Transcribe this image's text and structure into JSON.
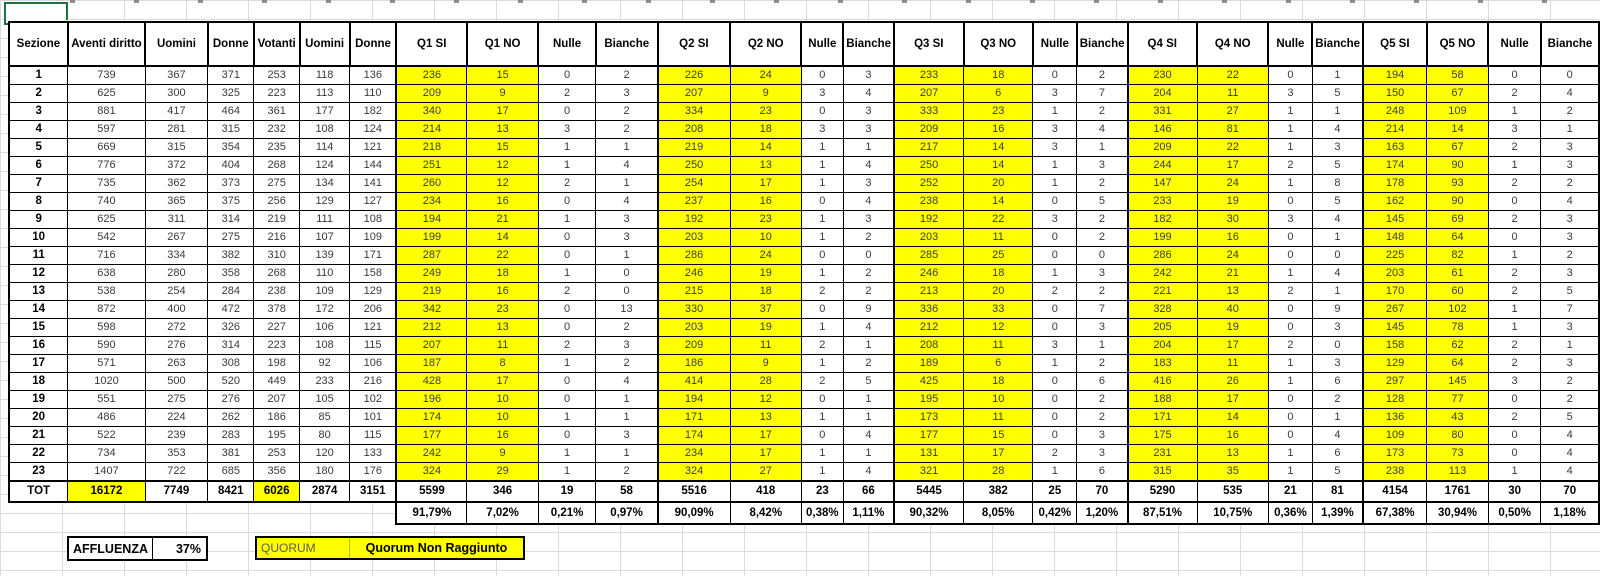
{
  "table": {
    "headers": [
      "Sezione",
      "Aventi diritto",
      "Uomini",
      "Donne",
      "Votanti",
      "Uomini",
      "Donne",
      "Q1 SI",
      "Q1 NO",
      "Nulle",
      "Bianche",
      "Q2 SI",
      "Q2 NO",
      "Nulle",
      "Bianche",
      "Q3 SI",
      "Q3 NO",
      "Nulle",
      "Bianche",
      "Q4 SI",
      "Q4 NO",
      "Nulle",
      "Bianche",
      "Q5 SI",
      "Q5 NO",
      "Nulle",
      "Bianche"
    ],
    "rows": [
      [
        1,
        739,
        367,
        371,
        253,
        118,
        136,
        236,
        15,
        0,
        2,
        226,
        24,
        0,
        3,
        233,
        18,
        0,
        2,
        230,
        22,
        0,
        1,
        194,
        58,
        0,
        0
      ],
      [
        2,
        625,
        300,
        325,
        223,
        113,
        110,
        209,
        9,
        2,
        3,
        207,
        9,
        3,
        4,
        207,
        6,
        3,
        7,
        204,
        11,
        3,
        5,
        150,
        67,
        2,
        4
      ],
      [
        3,
        881,
        417,
        464,
        361,
        177,
        182,
        340,
        17,
        0,
        2,
        334,
        23,
        0,
        3,
        333,
        23,
        1,
        2,
        331,
        27,
        1,
        1,
        248,
        109,
        1,
        2
      ],
      [
        4,
        597,
        281,
        315,
        232,
        108,
        124,
        214,
        13,
        3,
        2,
        208,
        18,
        3,
        3,
        209,
        16,
        3,
        4,
        146,
        81,
        1,
        4,
        214,
        14,
        3,
        1
      ],
      [
        5,
        669,
        315,
        354,
        235,
        114,
        121,
        218,
        15,
        1,
        1,
        219,
        14,
        1,
        1,
        217,
        14,
        3,
        1,
        209,
        22,
        1,
        3,
        163,
        67,
        2,
        3
      ],
      [
        6,
        776,
        372,
        404,
        268,
        124,
        144,
        251,
        12,
        1,
        4,
        250,
        13,
        1,
        4,
        250,
        14,
        1,
        3,
        244,
        17,
        2,
        5,
        174,
        90,
        1,
        3
      ],
      [
        7,
        735,
        362,
        373,
        275,
        134,
        141,
        260,
        12,
        2,
        1,
        254,
        17,
        1,
        3,
        252,
        20,
        1,
        2,
        147,
        24,
        1,
        8,
        178,
        93,
        2,
        2
      ],
      [
        8,
        740,
        365,
        375,
        256,
        129,
        127,
        234,
        16,
        0,
        4,
        237,
        16,
        0,
        4,
        238,
        14,
        0,
        5,
        233,
        19,
        0,
        5,
        162,
        90,
        0,
        4
      ],
      [
        9,
        625,
        311,
        314,
        219,
        111,
        108,
        194,
        21,
        1,
        3,
        192,
        23,
        1,
        3,
        192,
        22,
        3,
        2,
        182,
        30,
        3,
        4,
        145,
        69,
        2,
        3
      ],
      [
        10,
        542,
        267,
        275,
        216,
        107,
        109,
        199,
        14,
        0,
        3,
        203,
        10,
        1,
        2,
        203,
        11,
        0,
        2,
        199,
        16,
        0,
        1,
        148,
        64,
        0,
        3
      ],
      [
        11,
        716,
        334,
        382,
        310,
        139,
        171,
        287,
        22,
        0,
        1,
        286,
        24,
        0,
        0,
        285,
        25,
        0,
        0,
        286,
        24,
        0,
        0,
        225,
        82,
        1,
        2
      ],
      [
        12,
        638,
        280,
        358,
        268,
        110,
        158,
        249,
        18,
        1,
        0,
        246,
        19,
        1,
        2,
        246,
        18,
        1,
        3,
        242,
        21,
        1,
        4,
        203,
        61,
        2,
        3
      ],
      [
        13,
        538,
        254,
        284,
        238,
        109,
        129,
        219,
        16,
        2,
        0,
        215,
        18,
        2,
        2,
        213,
        20,
        2,
        2,
        221,
        13,
        2,
        1,
        170,
        60,
        2,
        5
      ],
      [
        14,
        872,
        400,
        472,
        378,
        172,
        206,
        342,
        23,
        0,
        13,
        330,
        37,
        0,
        9,
        336,
        33,
        0,
        7,
        328,
        40,
        0,
        9,
        267,
        102,
        1,
        7
      ],
      [
        15,
        598,
        272,
        326,
        227,
        106,
        121,
        212,
        13,
        0,
        2,
        203,
        19,
        1,
        4,
        212,
        12,
        0,
        3,
        205,
        19,
        0,
        3,
        145,
        78,
        1,
        3
      ],
      [
        16,
        590,
        276,
        314,
        223,
        108,
        115,
        207,
        11,
        2,
        3,
        209,
        11,
        2,
        1,
        208,
        11,
        3,
        1,
        204,
        17,
        2,
        0,
        158,
        62,
        2,
        1
      ],
      [
        17,
        571,
        263,
        308,
        198,
        92,
        106,
        187,
        8,
        1,
        2,
        186,
        9,
        1,
        2,
        189,
        6,
        1,
        2,
        183,
        11,
        1,
        3,
        129,
        64,
        2,
        3
      ],
      [
        18,
        1020,
        500,
        520,
        449,
        233,
        216,
        428,
        17,
        0,
        4,
        414,
        28,
        2,
        5,
        425,
        18,
        0,
        6,
        416,
        26,
        1,
        6,
        297,
        145,
        3,
        2
      ],
      [
        19,
        551,
        275,
        276,
        207,
        105,
        102,
        196,
        10,
        0,
        1,
        194,
        12,
        0,
        1,
        195,
        10,
        0,
        2,
        188,
        17,
        0,
        2,
        128,
        77,
        0,
        2
      ],
      [
        20,
        486,
        224,
        262,
        186,
        85,
        101,
        174,
        10,
        1,
        1,
        171,
        13,
        1,
        1,
        173,
        11,
        0,
        2,
        171,
        14,
        0,
        1,
        136,
        43,
        2,
        5
      ],
      [
        21,
        522,
        239,
        283,
        195,
        80,
        115,
        177,
        16,
        0,
        3,
        174,
        17,
        0,
        4,
        177,
        15,
        0,
        3,
        175,
        16,
        0,
        4,
        109,
        80,
        0,
        4
      ],
      [
        22,
        734,
        353,
        381,
        253,
        120,
        133,
        242,
        9,
        1,
        1,
        234,
        17,
        1,
        1,
        131,
        17,
        2,
        3,
        231,
        13,
        1,
        6,
        173,
        73,
        0,
        4
      ],
      [
        23,
        1407,
        722,
        685,
        356,
        180,
        176,
        324,
        29,
        1,
        2,
        324,
        27,
        1,
        4,
        321,
        28,
        1,
        6,
        315,
        35,
        1,
        5,
        238,
        113,
        1,
        4
      ]
    ],
    "total_row": [
      "TOT",
      16172,
      7749,
      8421,
      6026,
      2874,
      3151,
      5599,
      346,
      19,
      58,
      5516,
      418,
      23,
      66,
      5445,
      382,
      25,
      70,
      5290,
      535,
      21,
      81,
      4154,
      1761,
      30,
      70
    ],
    "percent_row": [
      "91,79%",
      "7,02%",
      "0,21%",
      "0,97%",
      "90,09%",
      "8,42%",
      "0,38%",
      "1,11%",
      "90,32%",
      "8,05%",
      "0,42%",
      "1,20%",
      "87,51%",
      "10,75%",
      "0,36%",
      "1,39%",
      "67,38%",
      "30,94%",
      "0,50%",
      "1,18%"
    ]
  },
  "footer": {
    "affluenza_label": "AFFLUENZA",
    "affluenza_value": "37%",
    "quorum_label": "QUORUM",
    "quorum_value": "Quorum Non Raggiunto"
  },
  "colors": {
    "highlight": "#FFFF00",
    "selection_border": "#1F7244"
  }
}
